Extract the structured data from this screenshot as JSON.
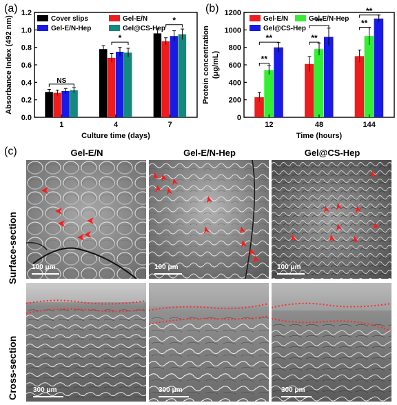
{
  "panels": {
    "a": "(a)",
    "b": "(b)",
    "c": "(c)"
  },
  "colors": {
    "black": "#000000",
    "red": "#ee1c1c",
    "blue": "#1a1ae6",
    "teal": "#138a7e",
    "green": "#33ee33",
    "sig": "#000000"
  },
  "chart_data": [
    {
      "type": "bar",
      "panel": "(a)",
      "ylabel": "Absorbance Index (492 nm)",
      "xlabel": "Culture time (days)",
      "categories": [
        "1",
        "4",
        "7"
      ],
      "ylim": [
        0.0,
        1.2
      ],
      "yticks": [
        "0.0",
        "0.2",
        "0.4",
        "0.6",
        "0.8",
        "1.0",
        "1.2"
      ],
      "legend_position": "top",
      "series": [
        {
          "name": "Cover slips",
          "color": "#000000",
          "values": [
            0.29,
            0.78,
            0.96
          ],
          "errors": [
            0.03,
            0.04,
            0.06
          ]
        },
        {
          "name": "Gel-E/N",
          "color": "#ee1c1c",
          "values": [
            0.28,
            0.68,
            0.87
          ],
          "errors": [
            0.03,
            0.05,
            0.04
          ]
        },
        {
          "name": "Gel-E/N-Hep",
          "color": "#1a1ae6",
          "values": [
            0.3,
            0.75,
            0.93
          ],
          "errors": [
            0.03,
            0.05,
            0.06
          ]
        },
        {
          "name": "Gel@CS-Hep",
          "color": "#138a7e",
          "values": [
            0.31,
            0.74,
            0.95
          ],
          "errors": [
            0.03,
            0.05,
            0.06
          ]
        }
      ],
      "annotations": [
        {
          "text": "NS",
          "category": 0,
          "from_series": 0,
          "to_series": 3,
          "y": 0.38
        },
        {
          "text": "*",
          "category": 1,
          "from_series": 1,
          "to_series": 3,
          "y": 0.86
        },
        {
          "text": "*",
          "category": 2,
          "from_series": 1,
          "to_series": 3,
          "y": 1.06
        }
      ]
    },
    {
      "type": "bar",
      "panel": "(b)",
      "ylabel": "Protein concentration",
      "ylabel_unit": "(μg/mL)",
      "xlabel": "Time (hours)",
      "categories": [
        "12",
        "48",
        "144"
      ],
      "ylim": [
        0,
        1200
      ],
      "yticks": [
        "0",
        "200",
        "400",
        "600",
        "800",
        "1000",
        "1200"
      ],
      "legend_position": "top-left",
      "series": [
        {
          "name": "Gel-E/N",
          "color": "#ee1c1c",
          "values": [
            230,
            610,
            700
          ],
          "errors": [
            55,
            85,
            70
          ]
        },
        {
          "name": "Gel-E/N-Hep",
          "color": "#33ee33",
          "values": [
            540,
            780,
            930
          ],
          "errors": [
            50,
            70,
            100
          ]
        },
        {
          "name": "Gel@CS-Hep",
          "color": "#1a1ae6",
          "values": [
            800,
            920,
            1130
          ],
          "errors": [
            55,
            100,
            40
          ]
        }
      ],
      "annotations": [
        {
          "text": "**",
          "category": 0,
          "from_series": 0,
          "to_series": 1,
          "y": 620
        },
        {
          "text": "**",
          "category": 0,
          "from_series": 0,
          "to_series": 2,
          "y": 860
        },
        {
          "text": "**",
          "category": 1,
          "from_series": 0,
          "to_series": 1,
          "y": 860
        },
        {
          "text": "**",
          "category": 1,
          "from_series": 0,
          "to_series": 2,
          "y": 1050
        },
        {
          "text": "**",
          "category": 2,
          "from_series": 0,
          "to_series": 1,
          "y": 1030
        },
        {
          "text": "**",
          "category": 2,
          "from_series": 0,
          "to_series": 2,
          "y": 1170
        }
      ]
    }
  ],
  "micrographs": {
    "columns": [
      "Gel-E/N",
      "Gel-E/N-Hep",
      "Gel@CS-Hep"
    ],
    "rows": [
      "Surface-section",
      "Cross-section"
    ],
    "surface_scale": "100 μm",
    "cross_scale": "300 μm"
  }
}
